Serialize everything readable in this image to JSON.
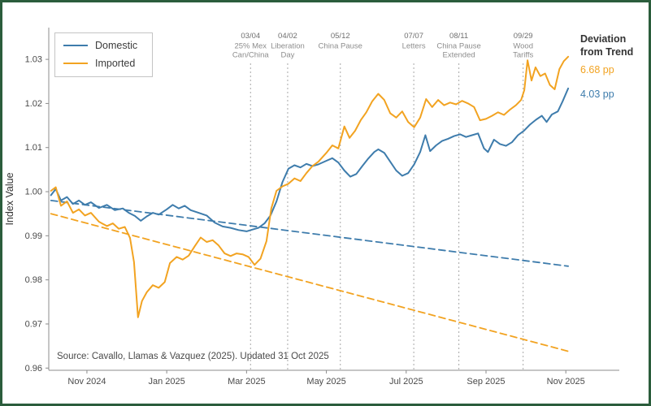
{
  "colors": {
    "domestic": "#3e7cac",
    "imported": "#f2a321",
    "frame": "#2b5d3c",
    "event_line": "#a8a8a8",
    "axis": "#8c8c8c"
  },
  "legend": {
    "items": [
      {
        "label": "Domestic",
        "color": "#3e7cac"
      },
      {
        "label": "Imported",
        "color": "#f2a321"
      }
    ]
  },
  "deviation": {
    "title": "Deviation from Trend",
    "imported_value": "6.68 pp",
    "domestic_value": "4.03 pp"
  },
  "source": "Source: Cavallo, Llamas & Vazquez (2025). Updated 31 Oct 2025",
  "chart_data": {
    "type": "line",
    "title": "",
    "xlabel": "",
    "ylabel": "Index Value",
    "x_unit": "months since 1 Nov 2024 (fractional)",
    "ylim": [
      0.96,
      1.03
    ],
    "grid": false,
    "legend_position": "top-left",
    "y_ticks": [
      {
        "v": 0.96,
        "label": "0.96"
      },
      {
        "v": 0.97,
        "label": "0.97"
      },
      {
        "v": 0.98,
        "label": "0.98"
      },
      {
        "v": 0.99,
        "label": "0.99"
      },
      {
        "v": 1.0,
        "label": "1.00"
      },
      {
        "v": 1.01,
        "label": "1.01"
      },
      {
        "v": 1.02,
        "label": "1.02"
      },
      {
        "v": 1.03,
        "label": "1.03"
      }
    ],
    "x_ticks": [
      {
        "t": 0,
        "label": "Nov 2024"
      },
      {
        "t": 2,
        "label": "Jan 2025"
      },
      {
        "t": 4,
        "label": "Mar 2025"
      },
      {
        "t": 6,
        "label": "May 2025"
      },
      {
        "t": 8,
        "label": "Jul 2025"
      },
      {
        "t": 10,
        "label": "Sep 2025"
      },
      {
        "t": 12,
        "label": "Nov 2025"
      }
    ],
    "events": [
      {
        "date": "03/04",
        "t": 4.1,
        "label_lines": [
          "25% Mex",
          "Can/China"
        ]
      },
      {
        "date": "04/02",
        "t": 5.03,
        "label_lines": [
          "Liberation",
          "Day"
        ]
      },
      {
        "date": "05/12",
        "t": 6.35,
        "label_lines": [
          "China Pause"
        ]
      },
      {
        "date": "07/07",
        "t": 8.19,
        "label_lines": [
          "Letters"
        ]
      },
      {
        "date": "08/11",
        "t": 9.32,
        "label_lines": [
          "China Pause",
          "Extended"
        ]
      },
      {
        "date": "09/29",
        "t": 10.93,
        "label_lines": [
          "Wood",
          "Tariffs"
        ]
      }
    ],
    "deviation_from_trend": {
      "imported_pp": 6.68,
      "domestic_pp": 4.03
    },
    "series": [
      {
        "name": "Domestic",
        "color": "#3e7cac",
        "style": "solid",
        "points": [
          [
            -0.9,
            0.9992
          ],
          [
            -0.78,
            1.0006
          ],
          [
            -0.65,
            0.998
          ],
          [
            -0.5,
            0.9988
          ],
          [
            -0.35,
            0.9972
          ],
          [
            -0.2,
            0.998
          ],
          [
            -0.05,
            0.997
          ],
          [
            0.1,
            0.9976
          ],
          [
            0.3,
            0.9963
          ],
          [
            0.5,
            0.997
          ],
          [
            0.7,
            0.9958
          ],
          [
            0.9,
            0.9962
          ],
          [
            1.05,
            0.9952
          ],
          [
            1.2,
            0.9945
          ],
          [
            1.35,
            0.9934
          ],
          [
            1.5,
            0.9944
          ],
          [
            1.65,
            0.9952
          ],
          [
            1.8,
            0.9948
          ],
          [
            2.0,
            0.996
          ],
          [
            2.15,
            0.997
          ],
          [
            2.3,
            0.9962
          ],
          [
            2.45,
            0.9968
          ],
          [
            2.6,
            0.9958
          ],
          [
            2.8,
            0.9952
          ],
          [
            3.0,
            0.9946
          ],
          [
            3.2,
            0.993
          ],
          [
            3.4,
            0.9921
          ],
          [
            3.6,
            0.9918
          ],
          [
            3.8,
            0.9913
          ],
          [
            4.0,
            0.991
          ],
          [
            4.15,
            0.9914
          ],
          [
            4.3,
            0.9918
          ],
          [
            4.45,
            0.9928
          ],
          [
            4.6,
            0.9946
          ],
          [
            4.75,
            0.9978
          ],
          [
            4.9,
            1.0022
          ],
          [
            5.05,
            1.0052
          ],
          [
            5.2,
            1.006
          ],
          [
            5.35,
            1.0055
          ],
          [
            5.5,
            1.0063
          ],
          [
            5.65,
            1.0058
          ],
          [
            5.8,
            1.0062
          ],
          [
            6.0,
            1.007
          ],
          [
            6.15,
            1.0076
          ],
          [
            6.3,
            1.0066
          ],
          [
            6.45,
            1.0048
          ],
          [
            6.6,
            1.0034
          ],
          [
            6.75,
            1.004
          ],
          [
            6.9,
            1.0058
          ],
          [
            7.05,
            1.0075
          ],
          [
            7.2,
            1.009
          ],
          [
            7.3,
            1.0096
          ],
          [
            7.45,
            1.0088
          ],
          [
            7.6,
            1.0068
          ],
          [
            7.75,
            1.0048
          ],
          [
            7.9,
            1.0036
          ],
          [
            8.05,
            1.0042
          ],
          [
            8.2,
            1.0062
          ],
          [
            8.35,
            1.009
          ],
          [
            8.48,
            1.0128
          ],
          [
            8.6,
            1.0092
          ],
          [
            8.75,
            1.0105
          ],
          [
            8.9,
            1.0115
          ],
          [
            9.05,
            1.012
          ],
          [
            9.2,
            1.0126
          ],
          [
            9.35,
            1.013
          ],
          [
            9.5,
            1.0124
          ],
          [
            9.65,
            1.0128
          ],
          [
            9.8,
            1.0132
          ],
          [
            9.95,
            1.0098
          ],
          [
            10.05,
            1.009
          ],
          [
            10.2,
            1.0118
          ],
          [
            10.35,
            1.0108
          ],
          [
            10.5,
            1.0104
          ],
          [
            10.65,
            1.0112
          ],
          [
            10.8,
            1.0128
          ],
          [
            10.95,
            1.0138
          ],
          [
            11.1,
            1.0152
          ],
          [
            11.25,
            1.0163
          ],
          [
            11.4,
            1.0172
          ],
          [
            11.52,
            1.0158
          ],
          [
            11.65,
            1.0175
          ],
          [
            11.8,
            1.0182
          ],
          [
            11.92,
            1.0205
          ],
          [
            12.06,
            1.0234
          ]
        ]
      },
      {
        "name": "Imported",
        "color": "#f2a321",
        "style": "solid",
        "points": [
          [
            -0.9,
            1.0002
          ],
          [
            -0.78,
            1.001
          ],
          [
            -0.65,
            0.9968
          ],
          [
            -0.5,
            0.9978
          ],
          [
            -0.35,
            0.9952
          ],
          [
            -0.2,
            0.996
          ],
          [
            -0.05,
            0.9946
          ],
          [
            0.1,
            0.9952
          ],
          [
            0.3,
            0.9932
          ],
          [
            0.5,
            0.9922
          ],
          [
            0.65,
            0.9928
          ],
          [
            0.8,
            0.9916
          ],
          [
            0.95,
            0.992
          ],
          [
            1.08,
            0.9895
          ],
          [
            1.18,
            0.984
          ],
          [
            1.28,
            0.9715
          ],
          [
            1.38,
            0.9752
          ],
          [
            1.5,
            0.9772
          ],
          [
            1.65,
            0.9788
          ],
          [
            1.8,
            0.9782
          ],
          [
            1.95,
            0.9795
          ],
          [
            2.08,
            0.9838
          ],
          [
            2.25,
            0.9852
          ],
          [
            2.4,
            0.9846
          ],
          [
            2.55,
            0.9855
          ],
          [
            2.7,
            0.9876
          ],
          [
            2.85,
            0.9896
          ],
          [
            3.0,
            0.9886
          ],
          [
            3.15,
            0.989
          ],
          [
            3.3,
            0.9878
          ],
          [
            3.45,
            0.986
          ],
          [
            3.6,
            0.9854
          ],
          [
            3.75,
            0.986
          ],
          [
            3.9,
            0.9858
          ],
          [
            4.05,
            0.9852
          ],
          [
            4.2,
            0.9834
          ],
          [
            4.35,
            0.9848
          ],
          [
            4.5,
            0.9888
          ],
          [
            4.62,
            0.9962
          ],
          [
            4.75,
            1.0002
          ],
          [
            4.9,
            1.0012
          ],
          [
            5.05,
            1.0018
          ],
          [
            5.2,
            1.003
          ],
          [
            5.35,
            1.0024
          ],
          [
            5.5,
            1.0042
          ],
          [
            5.65,
            1.0058
          ],
          [
            5.8,
            1.0068
          ],
          [
            6.0,
            1.0088
          ],
          [
            6.15,
            1.0105
          ],
          [
            6.3,
            1.0098
          ],
          [
            6.45,
            1.0148
          ],
          [
            6.58,
            1.0122
          ],
          [
            6.72,
            1.0138
          ],
          [
            6.86,
            1.0162
          ],
          [
            7.0,
            1.018
          ],
          [
            7.15,
            1.0205
          ],
          [
            7.3,
            1.0222
          ],
          [
            7.45,
            1.0208
          ],
          [
            7.6,
            1.0178
          ],
          [
            7.75,
            1.0168
          ],
          [
            7.9,
            1.0182
          ],
          [
            8.05,
            1.0158
          ],
          [
            8.2,
            1.0146
          ],
          [
            8.35,
            1.0168
          ],
          [
            8.5,
            1.021
          ],
          [
            8.65,
            1.0192
          ],
          [
            8.8,
            1.0208
          ],
          [
            8.95,
            1.0196
          ],
          [
            9.1,
            1.0202
          ],
          [
            9.25,
            1.0198
          ],
          [
            9.4,
            1.0206
          ],
          [
            9.55,
            1.02
          ],
          [
            9.7,
            1.0192
          ],
          [
            9.85,
            1.0162
          ],
          [
            10.0,
            1.0165
          ],
          [
            10.15,
            1.0172
          ],
          [
            10.3,
            1.018
          ],
          [
            10.45,
            1.0174
          ],
          [
            10.6,
            1.0186
          ],
          [
            10.75,
            1.0196
          ],
          [
            10.88,
            1.0208
          ],
          [
            10.96,
            1.023
          ],
          [
            11.04,
            1.0298
          ],
          [
            11.14,
            1.0252
          ],
          [
            11.24,
            1.0282
          ],
          [
            11.36,
            1.0262
          ],
          [
            11.48,
            1.0268
          ],
          [
            11.6,
            1.0242
          ],
          [
            11.72,
            1.0232
          ],
          [
            11.84,
            1.0278
          ],
          [
            11.95,
            1.0296
          ],
          [
            12.06,
            1.0306
          ]
        ]
      },
      {
        "name": "Domestic trend",
        "color": "#3e7cac",
        "style": "dashed",
        "points": [
          [
            -0.9,
            0.998
          ],
          [
            12.06,
            0.9831
          ]
        ]
      },
      {
        "name": "Imported trend",
        "color": "#f2a321",
        "style": "dashed",
        "points": [
          [
            -0.9,
            0.995
          ],
          [
            12.06,
            0.9638
          ]
        ]
      }
    ]
  }
}
